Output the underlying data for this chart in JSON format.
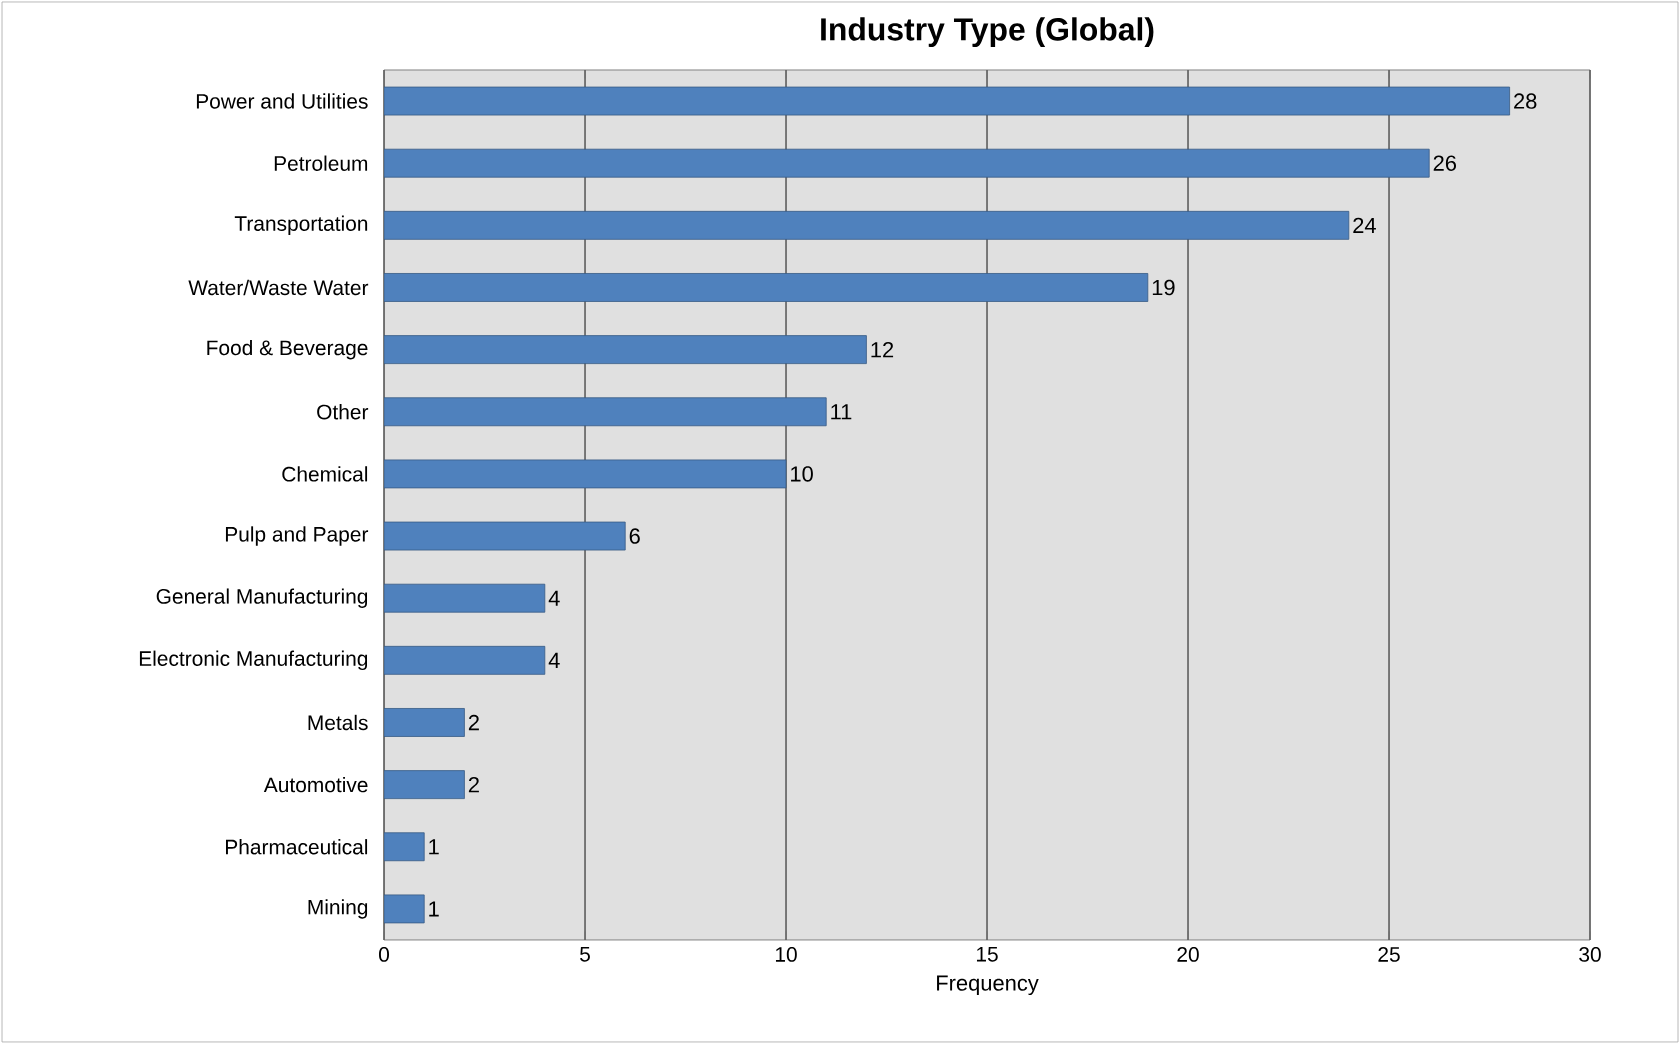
{
  "chart_data": {
    "type": "bar",
    "orientation": "horizontal",
    "title": "Industry Type (Global)",
    "xlabel": "Frequency",
    "categories": [
      "Power and Utilities",
      "Petroleum",
      "Transportation",
      "Water/Waste Water",
      "Food & Beverage",
      "Other",
      "Chemical",
      "Pulp and Paper",
      "General Manufacturing",
      "Electronic Manufacturing",
      "Metals",
      "Automotive",
      "Pharmaceutical",
      "Mining"
    ],
    "values": [
      28,
      26,
      24,
      19,
      12,
      11,
      10,
      6,
      4,
      4,
      2,
      2,
      1,
      1
    ],
    "color": "#4f81bd",
    "xlim": [
      0,
      30
    ],
    "xticks": [
      0,
      5,
      10,
      15,
      20,
      25,
      30
    ],
    "grid": "x",
    "data_labels": true
  }
}
